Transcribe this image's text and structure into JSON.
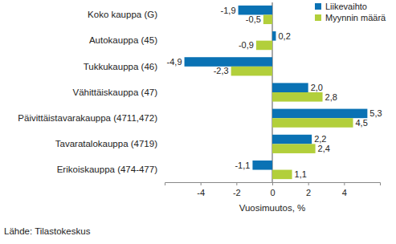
{
  "chart_data": {
    "type": "bar",
    "orientation": "horizontal",
    "categories": [
      "Koko kauppa (G)",
      "Autokauppa (45)",
      "Tukkukauppa (46)",
      "Vähittäiskauppa (47)",
      "Päivittäistavarakauppa (4711,472)",
      "Tavaratalokauppa (4719)",
      "Erikoiskauppa (474-477)"
    ],
    "series": [
      {
        "name": "Liikevaihto",
        "color": "#0a72b4",
        "values": [
          -1.9,
          0.2,
          -4.9,
          2.0,
          5.3,
          2.2,
          -1.1
        ],
        "value_labels": [
          "-1,9",
          "0,2",
          "-4,9",
          "2,0",
          "5,3",
          "2,2",
          "-1,1"
        ]
      },
      {
        "name": "Myynnin määrä",
        "color": "#b2cf3b",
        "values": [
          -0.5,
          -0.9,
          -2.3,
          2.8,
          4.5,
          2.4,
          1.1
        ],
        "value_labels": [
          "-0,5",
          "-0,9",
          "-2,3",
          "2,8",
          "4,5",
          "2,4",
          "1,1"
        ]
      }
    ],
    "x_label": "Vuosimuutos, %",
    "source": "Lähde: Tilastokeskus",
    "xlim": [
      -6,
      6
    ],
    "xticks": [
      -4,
      -2,
      0,
      2,
      4
    ],
    "data_labels": true,
    "legend": "top-right",
    "grid": false
  }
}
